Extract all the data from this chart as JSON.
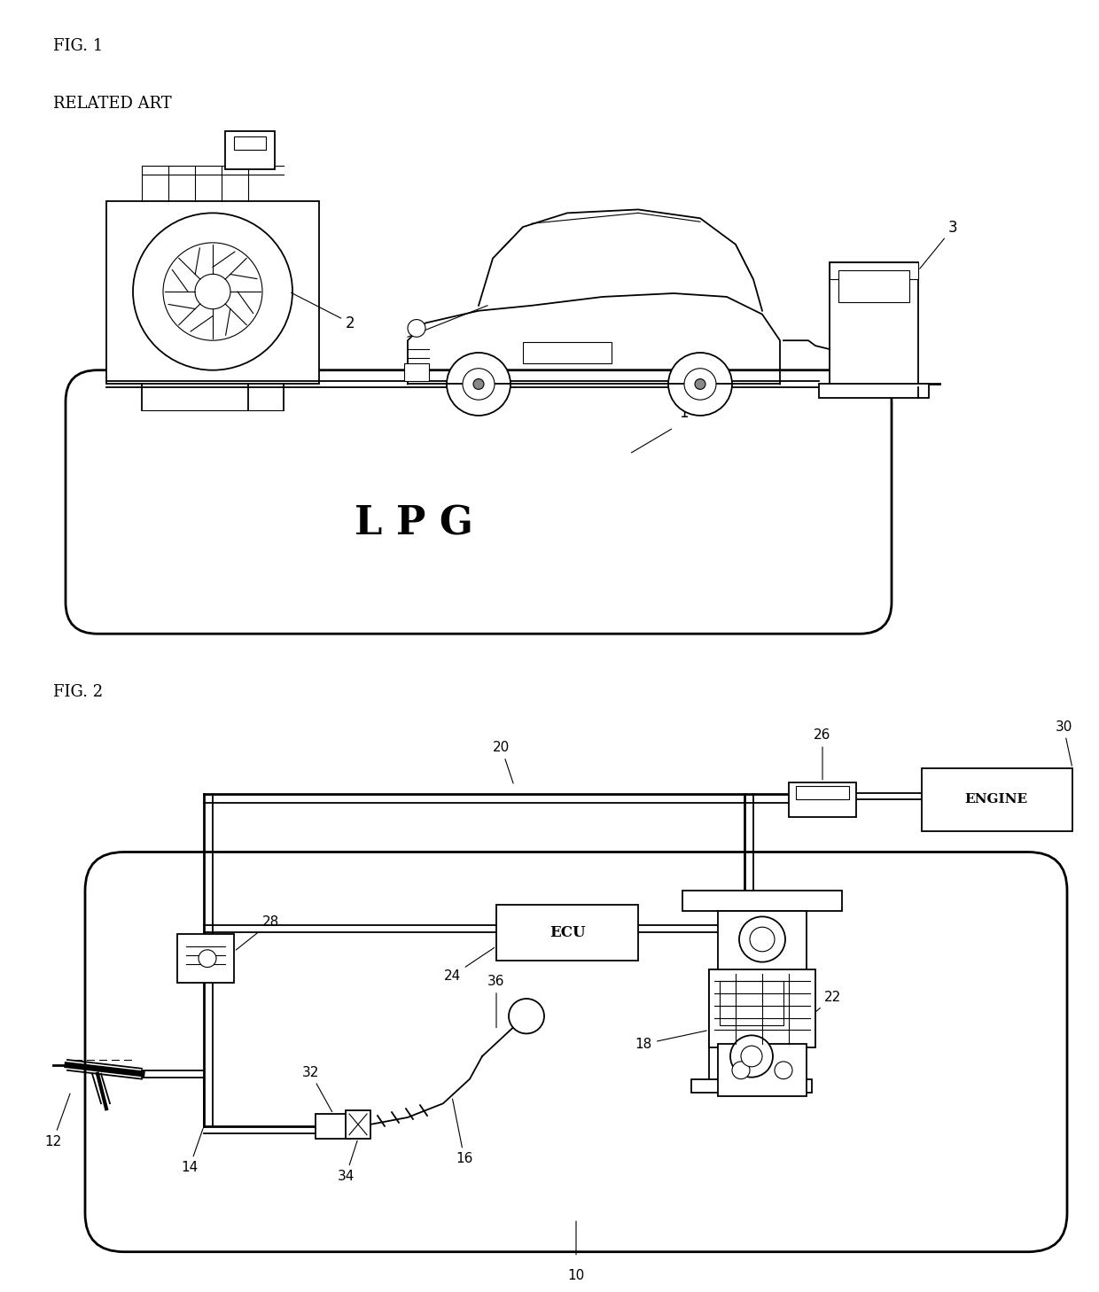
{
  "fig_width": 12.4,
  "fig_height": 14.58,
  "bg_color": "#ffffff",
  "line_color": "#000000",
  "fig1": {
    "title": "FIG. 1",
    "subtitle": "RELATED ART",
    "lpg_text": "L P G"
  },
  "fig2": {
    "title": "FIG. 2"
  }
}
